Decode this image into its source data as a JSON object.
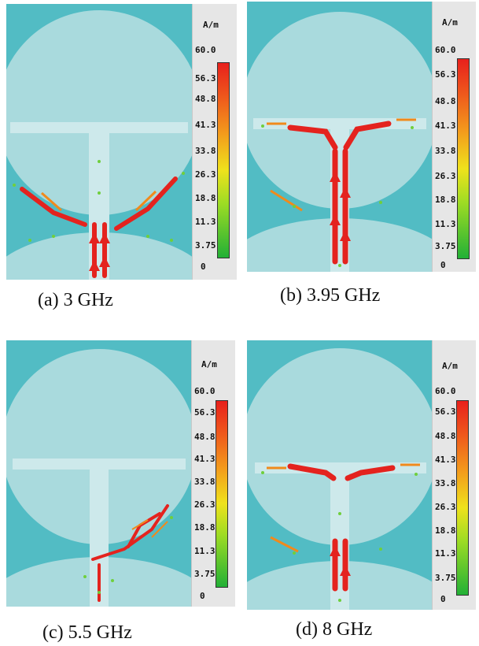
{
  "legend": {
    "unit": "A/m",
    "ticks": [
      "60.0",
      "56.3",
      "48.8",
      "41.3",
      "33.8",
      "26.3",
      "18.8",
      "11.3",
      "3.75",
      "0"
    ]
  },
  "panels": [
    {
      "caption": "(a) 3 GHz"
    },
    {
      "caption": "(b) 3.95 GHz"
    },
    {
      "caption": "(c) 5.5 GHz"
    },
    {
      "caption": "(d) 8 GHz"
    }
  ]
}
